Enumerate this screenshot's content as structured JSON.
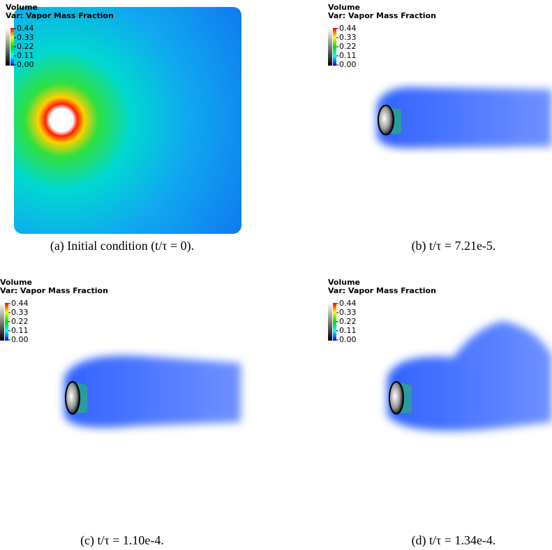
{
  "panels": [
    {
      "plot_label": "Volume",
      "var_label": "Var: Vapor Mass Fraction",
      "colorbar_ticks": [
        "0.44",
        "0.33",
        "0.22",
        "0.11",
        "0.00"
      ],
      "caption": "(a) Initial condition (t/τ = 0)."
    },
    {
      "plot_label": "Volume",
      "var_label": "Var: Vapor Mass Fraction",
      "colorbar_ticks": [
        "0.44",
        "0.33",
        "0.22",
        "0.11",
        "0.00"
      ],
      "caption": "(b) t/τ = 7.21e-5."
    },
    {
      "plot_label": "Volume",
      "var_label": "Var: Vapor Mass Fraction",
      "colorbar_ticks": [
        "0.44",
        "0.33",
        "0.22",
        "0.11",
        "0.00"
      ],
      "caption": "(c) t/τ = 1.10e-4."
    },
    {
      "plot_label": "Volume",
      "var_label": "Var: Vapor Mass Fraction",
      "colorbar_ticks": [
        "0.44",
        "0.33",
        "0.22",
        "0.11",
        "0.00"
      ],
      "caption": "(d) t/τ = 1.34e-4."
    }
  ]
}
